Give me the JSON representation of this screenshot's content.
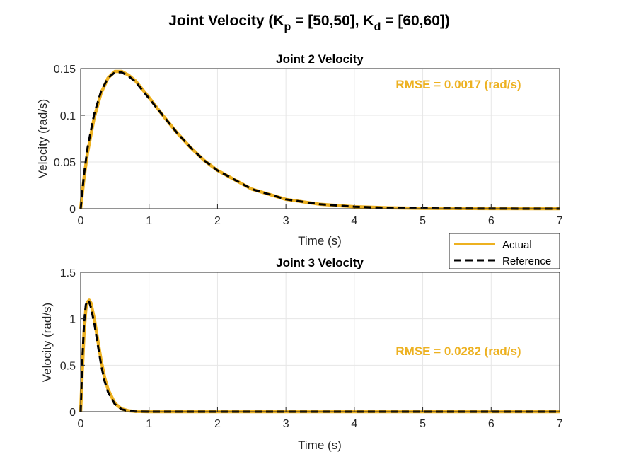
{
  "figure": {
    "title_main": "Joint Velocity (K",
    "title_sub1": "p",
    "title_mid": " = [50,50], K",
    "title_sub2": "d",
    "title_end": " = [60,60])"
  },
  "legend": {
    "placement": "between subplots, right",
    "entries": [
      "Actual",
      "Reference"
    ]
  },
  "colors": {
    "actual": "#EDB120",
    "reference": "#000000",
    "rmse_text": "#EDB120",
    "grid": "#e6e6e6"
  },
  "chart_data": [
    {
      "type": "line",
      "title": "Joint 2 Velocity",
      "xlabel": "Time (s)",
      "ylabel": "Velocity  (rad/s)",
      "xlim": [
        0,
        7
      ],
      "ylim": [
        0,
        0.15
      ],
      "xticks": [
        0,
        1,
        2,
        3,
        4,
        5,
        6,
        7
      ],
      "xtick_labels": [
        "0",
        "1",
        "2",
        "3",
        "4",
        "5",
        "6",
        "7"
      ],
      "yticks": [
        0,
        0.05,
        0.1,
        0.15
      ],
      "ytick_labels": [
        "0",
        "0.05",
        "0.1",
        "0.15"
      ],
      "grid": true,
      "annotation": "RMSE = 0.0017 (rad/s)",
      "series": [
        {
          "name": "Actual",
          "x": [
            0,
            0.05,
            0.1,
            0.2,
            0.3,
            0.4,
            0.5,
            0.6,
            0.7,
            0.8,
            1.0,
            1.2,
            1.4,
            1.6,
            1.8,
            2.0,
            2.5,
            3.0,
            3.5,
            4.0,
            4.5,
            5.0,
            6.0,
            7.0
          ],
          "y": [
            0,
            0.033,
            0.06,
            0.098,
            0.124,
            0.14,
            0.147,
            0.147,
            0.143,
            0.137,
            0.119,
            0.1,
            0.082,
            0.066,
            0.052,
            0.041,
            0.021,
            0.01,
            0.0047,
            0.0021,
            0.0009,
            0.0004,
            0.0001,
            0
          ]
        },
        {
          "name": "Reference",
          "x": [
            0,
            0.05,
            0.1,
            0.2,
            0.3,
            0.4,
            0.5,
            0.6,
            0.7,
            0.8,
            1.0,
            1.2,
            1.4,
            1.6,
            1.8,
            2.0,
            2.5,
            3.0,
            3.5,
            4.0,
            4.5,
            5.0,
            6.0,
            7.0
          ],
          "y": [
            0,
            0.037,
            0.065,
            0.102,
            0.126,
            0.14,
            0.146,
            0.146,
            0.142,
            0.136,
            0.118,
            0.1,
            0.082,
            0.066,
            0.052,
            0.041,
            0.021,
            0.01,
            0.0047,
            0.0021,
            0.0009,
            0.0004,
            0.0001,
            0
          ]
        }
      ]
    },
    {
      "type": "line",
      "title": "Joint 3 Velocity",
      "xlabel": "Time (s)",
      "ylabel": "Velocity  (rad/s)",
      "xlim": [
        0,
        7
      ],
      "ylim": [
        0,
        1.5
      ],
      "xticks": [
        0,
        1,
        2,
        3,
        4,
        5,
        6,
        7
      ],
      "xtick_labels": [
        "0",
        "1",
        "2",
        "3",
        "4",
        "5",
        "6",
        "7"
      ],
      "yticks": [
        0,
        0.5,
        1,
        1.5
      ],
      "ytick_labels": [
        "0",
        "0.5",
        "1",
        "1.5"
      ],
      "grid": true,
      "annotation": "RMSE = 0.0282 (rad/s)",
      "series": [
        {
          "name": "Actual",
          "x": [
            0,
            0.025,
            0.05,
            0.075,
            0.1,
            0.125,
            0.15,
            0.2,
            0.25,
            0.3,
            0.35,
            0.4,
            0.5,
            0.6,
            0.7,
            0.8,
            1.0,
            1.5,
            2.0,
            7.0
          ],
          "y": [
            0,
            0.45,
            0.85,
            1.1,
            1.18,
            1.2,
            1.17,
            1.0,
            0.77,
            0.55,
            0.37,
            0.24,
            0.09,
            0.03,
            0.01,
            0.003,
            0,
            0,
            0,
            0
          ]
        },
        {
          "name": "Reference",
          "x": [
            0,
            0.025,
            0.05,
            0.075,
            0.1,
            0.125,
            0.15,
            0.2,
            0.25,
            0.3,
            0.35,
            0.4,
            0.5,
            0.6,
            0.7,
            0.8,
            1.0,
            1.5,
            2.0,
            7.0
          ],
          "y": [
            0,
            0.55,
            0.95,
            1.15,
            1.2,
            1.18,
            1.12,
            0.95,
            0.72,
            0.5,
            0.33,
            0.21,
            0.08,
            0.025,
            0.008,
            0.002,
            0,
            0,
            0,
            0
          ]
        }
      ]
    }
  ]
}
